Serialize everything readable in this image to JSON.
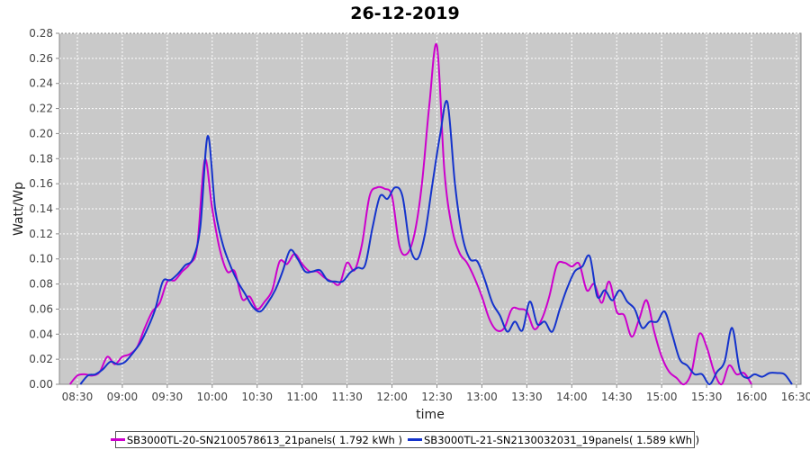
{
  "chart_data": {
    "type": "line",
    "title": "26-12-2019",
    "xlabel": "time",
    "ylabel": "Watt/Wp",
    "x_ticks": [
      "08:30",
      "09:00",
      "09:30",
      "10:00",
      "10:30",
      "11:00",
      "11:30",
      "12:00",
      "12:30",
      "13:00",
      "13:30",
      "14:00",
      "14:30",
      "15:00",
      "15:30",
      "16:00",
      "16:30"
    ],
    "y_ticks": [
      "0.00",
      "0.02",
      "0.04",
      "0.06",
      "0.08",
      "0.10",
      "0.12",
      "0.14",
      "0.16",
      "0.18",
      "0.20",
      "0.22",
      "0.24",
      "0.26",
      "0.28"
    ],
    "xlim": [
      "08:18",
      "16:33"
    ],
    "ylim": [
      0,
      0.28
    ],
    "grid": true,
    "legend_position": "bottom",
    "series": [
      {
        "name": "SB3000TL-20-SN2100578613_21panels( 1.792 kWh )",
        "color": "#cc00cc",
        "points": [
          [
            "08:25",
            0.0
          ],
          [
            "08:30",
            0.007
          ],
          [
            "08:35",
            0.008
          ],
          [
            "08:40",
            0.007
          ],
          [
            "08:45",
            0.01
          ],
          [
            "08:50",
            0.022
          ],
          [
            "08:55",
            0.016
          ],
          [
            "09:00",
            0.022
          ],
          [
            "09:05",
            0.024
          ],
          [
            "09:10",
            0.03
          ],
          [
            "09:15",
            0.045
          ],
          [
            "09:20",
            0.058
          ],
          [
            "09:25",
            0.065
          ],
          [
            "09:30",
            0.082
          ],
          [
            "09:35",
            0.083
          ],
          [
            "09:40",
            0.09
          ],
          [
            "09:45",
            0.096
          ],
          [
            "09:50",
            0.11
          ],
          [
            "09:55",
            0.179
          ],
          [
            "10:00",
            0.14
          ],
          [
            "10:05",
            0.108
          ],
          [
            "10:10",
            0.09
          ],
          [
            "10:15",
            0.09
          ],
          [
            "10:20",
            0.068
          ],
          [
            "10:25",
            0.07
          ],
          [
            "10:30",
            0.06
          ],
          [
            "10:35",
            0.066
          ],
          [
            "10:40",
            0.075
          ],
          [
            "10:45",
            0.098
          ],
          [
            "10:50",
            0.096
          ],
          [
            "10:55",
            0.104
          ],
          [
            "11:00",
            0.096
          ],
          [
            "11:05",
            0.09
          ],
          [
            "11:10",
            0.09
          ],
          [
            "11:15",
            0.085
          ],
          [
            "11:20",
            0.082
          ],
          [
            "11:25",
            0.08
          ],
          [
            "11:30",
            0.097
          ],
          [
            "11:35",
            0.091
          ],
          [
            "11:40",
            0.112
          ],
          [
            "11:45",
            0.15
          ],
          [
            "11:50",
            0.157
          ],
          [
            "11:55",
            0.156
          ],
          [
            "12:00",
            0.15
          ],
          [
            "12:05",
            0.11
          ],
          [
            "12:10",
            0.104
          ],
          [
            "12:15",
            0.12
          ],
          [
            "12:20",
            0.16
          ],
          [
            "12:25",
            0.224
          ],
          [
            "12:30",
            0.27
          ],
          [
            "12:35",
            0.17
          ],
          [
            "12:40",
            0.125
          ],
          [
            "12:45",
            0.105
          ],
          [
            "12:50",
            0.097
          ],
          [
            "12:55",
            0.085
          ],
          [
            "13:00",
            0.07
          ],
          [
            "13:05",
            0.052
          ],
          [
            "13:10",
            0.043
          ],
          [
            "13:15",
            0.045
          ],
          [
            "13:20",
            0.06
          ],
          [
            "13:25",
            0.06
          ],
          [
            "13:30",
            0.058
          ],
          [
            "13:35",
            0.044
          ],
          [
            "13:40",
            0.052
          ],
          [
            "13:45",
            0.07
          ],
          [
            "13:50",
            0.095
          ],
          [
            "13:55",
            0.097
          ],
          [
            "14:00",
            0.094
          ],
          [
            "14:05",
            0.096
          ],
          [
            "14:10",
            0.075
          ],
          [
            "14:15",
            0.08
          ],
          [
            "14:20",
            0.065
          ],
          [
            "14:25",
            0.082
          ],
          [
            "14:30",
            0.058
          ],
          [
            "14:35",
            0.055
          ],
          [
            "14:40",
            0.038
          ],
          [
            "14:45",
            0.052
          ],
          [
            "14:50",
            0.067
          ],
          [
            "14:55",
            0.042
          ],
          [
            "15:00",
            0.022
          ],
          [
            "15:05",
            0.01
          ],
          [
            "15:10",
            0.005
          ],
          [
            "15:15",
            0.0
          ],
          [
            "15:20",
            0.01
          ],
          [
            "15:25",
            0.04
          ],
          [
            "15:30",
            0.03
          ],
          [
            "15:35",
            0.01
          ],
          [
            "15:40",
            0.0
          ],
          [
            "15:45",
            0.015
          ],
          [
            "15:50",
            0.008
          ],
          [
            "15:55",
            0.009
          ],
          [
            "16:00",
            0.0
          ]
        ]
      },
      {
        "name": "SB3000TL-21-SN2130032031_19panels( 1.589 kWh )",
        "color": "#1433cc",
        "points": [
          [
            "08:32",
            0.0
          ],
          [
            "08:37",
            0.007
          ],
          [
            "08:42",
            0.008
          ],
          [
            "08:47",
            0.012
          ],
          [
            "08:52",
            0.018
          ],
          [
            "08:57",
            0.016
          ],
          [
            "09:02",
            0.018
          ],
          [
            "09:07",
            0.025
          ],
          [
            "09:12",
            0.033
          ],
          [
            "09:17",
            0.045
          ],
          [
            "09:22",
            0.06
          ],
          [
            "09:27",
            0.082
          ],
          [
            "09:32",
            0.083
          ],
          [
            "09:37",
            0.088
          ],
          [
            "09:42",
            0.095
          ],
          [
            "09:47",
            0.1
          ],
          [
            "09:52",
            0.125
          ],
          [
            "09:57",
            0.198
          ],
          [
            "10:02",
            0.14
          ],
          [
            "10:07",
            0.112
          ],
          [
            "10:12",
            0.095
          ],
          [
            "10:17",
            0.082
          ],
          [
            "10:22",
            0.072
          ],
          [
            "10:27",
            0.062
          ],
          [
            "10:32",
            0.058
          ],
          [
            "10:37",
            0.065
          ],
          [
            "10:42",
            0.075
          ],
          [
            "10:47",
            0.09
          ],
          [
            "10:52",
            0.107
          ],
          [
            "10:57",
            0.1
          ],
          [
            "11:02",
            0.09
          ],
          [
            "11:07",
            0.09
          ],
          [
            "11:12",
            0.091
          ],
          [
            "11:17",
            0.083
          ],
          [
            "11:22",
            0.082
          ],
          [
            "11:27",
            0.082
          ],
          [
            "11:32",
            0.089
          ],
          [
            "11:37",
            0.093
          ],
          [
            "11:42",
            0.095
          ],
          [
            "11:47",
            0.125
          ],
          [
            "11:52",
            0.15
          ],
          [
            "11:57",
            0.148
          ],
          [
            "12:02",
            0.157
          ],
          [
            "12:07",
            0.15
          ],
          [
            "12:12",
            0.11
          ],
          [
            "12:17",
            0.1
          ],
          [
            "12:22",
            0.12
          ],
          [
            "12:27",
            0.16
          ],
          [
            "12:32",
            0.198
          ],
          [
            "12:37",
            0.225
          ],
          [
            "12:42",
            0.16
          ],
          [
            "12:47",
            0.118
          ],
          [
            "12:52",
            0.1
          ],
          [
            "12:57",
            0.098
          ],
          [
            "13:02",
            0.083
          ],
          [
            "13:07",
            0.065
          ],
          [
            "13:12",
            0.055
          ],
          [
            "13:17",
            0.042
          ],
          [
            "13:22",
            0.05
          ],
          [
            "13:27",
            0.043
          ],
          [
            "13:32",
            0.066
          ],
          [
            "13:37",
            0.048
          ],
          [
            "13:42",
            0.05
          ],
          [
            "13:47",
            0.042
          ],
          [
            "13:52",
            0.06
          ],
          [
            "13:57",
            0.077
          ],
          [
            "14:02",
            0.09
          ],
          [
            "14:07",
            0.094
          ],
          [
            "14:12",
            0.102
          ],
          [
            "14:17",
            0.07
          ],
          [
            "14:22",
            0.075
          ],
          [
            "14:27",
            0.067
          ],
          [
            "14:32",
            0.075
          ],
          [
            "14:37",
            0.066
          ],
          [
            "14:42",
            0.06
          ],
          [
            "14:47",
            0.045
          ],
          [
            "14:52",
            0.05
          ],
          [
            "14:57",
            0.05
          ],
          [
            "15:02",
            0.058
          ],
          [
            "15:07",
            0.04
          ],
          [
            "15:12",
            0.02
          ],
          [
            "15:17",
            0.015
          ],
          [
            "15:22",
            0.008
          ],
          [
            "15:27",
            0.008
          ],
          [
            "15:32",
            0.0
          ],
          [
            "15:37",
            0.01
          ],
          [
            "15:42",
            0.018
          ],
          [
            "15:47",
            0.045
          ],
          [
            "15:52",
            0.012
          ],
          [
            "15:57",
            0.005
          ],
          [
            "16:02",
            0.008
          ],
          [
            "16:07",
            0.006
          ],
          [
            "16:12",
            0.009
          ],
          [
            "16:17",
            0.009
          ],
          [
            "16:22",
            0.008
          ],
          [
            "16:27",
            0.0
          ]
        ]
      }
    ]
  }
}
